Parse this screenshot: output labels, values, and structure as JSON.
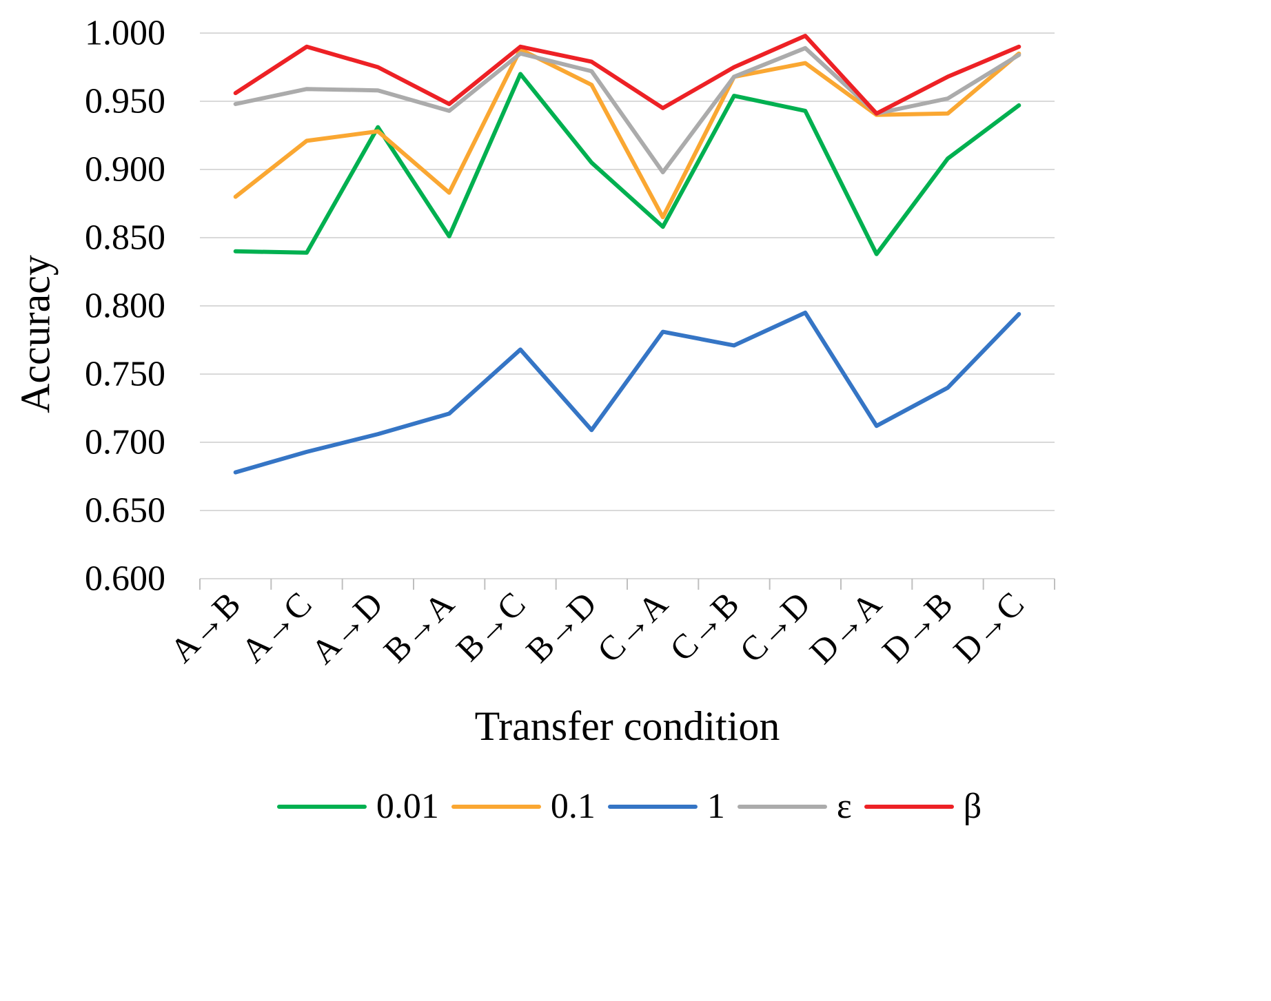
{
  "chart_data": {
    "type": "line",
    "title": "",
    "xlabel": "Transfer condition",
    "ylabel": "Accuracy",
    "ylim": [
      0.6,
      1.0
    ],
    "ytick_step": 0.05,
    "grid": true,
    "legend_position": "bottom",
    "categories": [
      "A→B",
      "A→C",
      "A→D",
      "B→A",
      "B→C",
      "B→D",
      "C→A",
      "C→B",
      "C→D",
      "D→A",
      "D→B",
      "D→C"
    ],
    "y_tick_labels": [
      "0.600",
      "0.650",
      "0.700",
      "0.750",
      "0.800",
      "0.850",
      "0.900",
      "0.950",
      "1.000"
    ],
    "series": [
      {
        "name": "0.01",
        "color": "#00B050",
        "values": [
          0.84,
          0.839,
          0.931,
          0.851,
          0.97,
          0.905,
          0.858,
          0.954,
          0.943,
          0.838,
          0.908,
          0.947
        ]
      },
      {
        "name": "0.1",
        "color": "#FAA732",
        "values": [
          0.88,
          0.921,
          0.928,
          0.883,
          0.988,
          0.962,
          0.865,
          0.968,
          0.978,
          0.94,
          0.941,
          0.985
        ]
      },
      {
        "name": "1",
        "color": "#3575C5",
        "values": [
          0.678,
          0.693,
          0.706,
          0.721,
          0.768,
          0.709,
          0.781,
          0.771,
          0.795,
          0.712,
          0.74,
          0.794
        ]
      },
      {
        "name": "ε",
        "color": "#ABABAB",
        "values": [
          0.948,
          0.959,
          0.958,
          0.943,
          0.985,
          0.972,
          0.898,
          0.968,
          0.989,
          0.941,
          0.952,
          0.984
        ]
      },
      {
        "name": "β",
        "color": "#ED2125",
        "values": [
          0.956,
          0.99,
          0.975,
          0.948,
          0.99,
          0.979,
          0.945,
          0.975,
          0.998,
          0.941,
          0.968,
          0.99
        ]
      }
    ]
  },
  "colors": {
    "gridline": "#D9D9D9",
    "tick": "#BFBFBF",
    "text": "#000000",
    "background": "#FFFFFF"
  }
}
